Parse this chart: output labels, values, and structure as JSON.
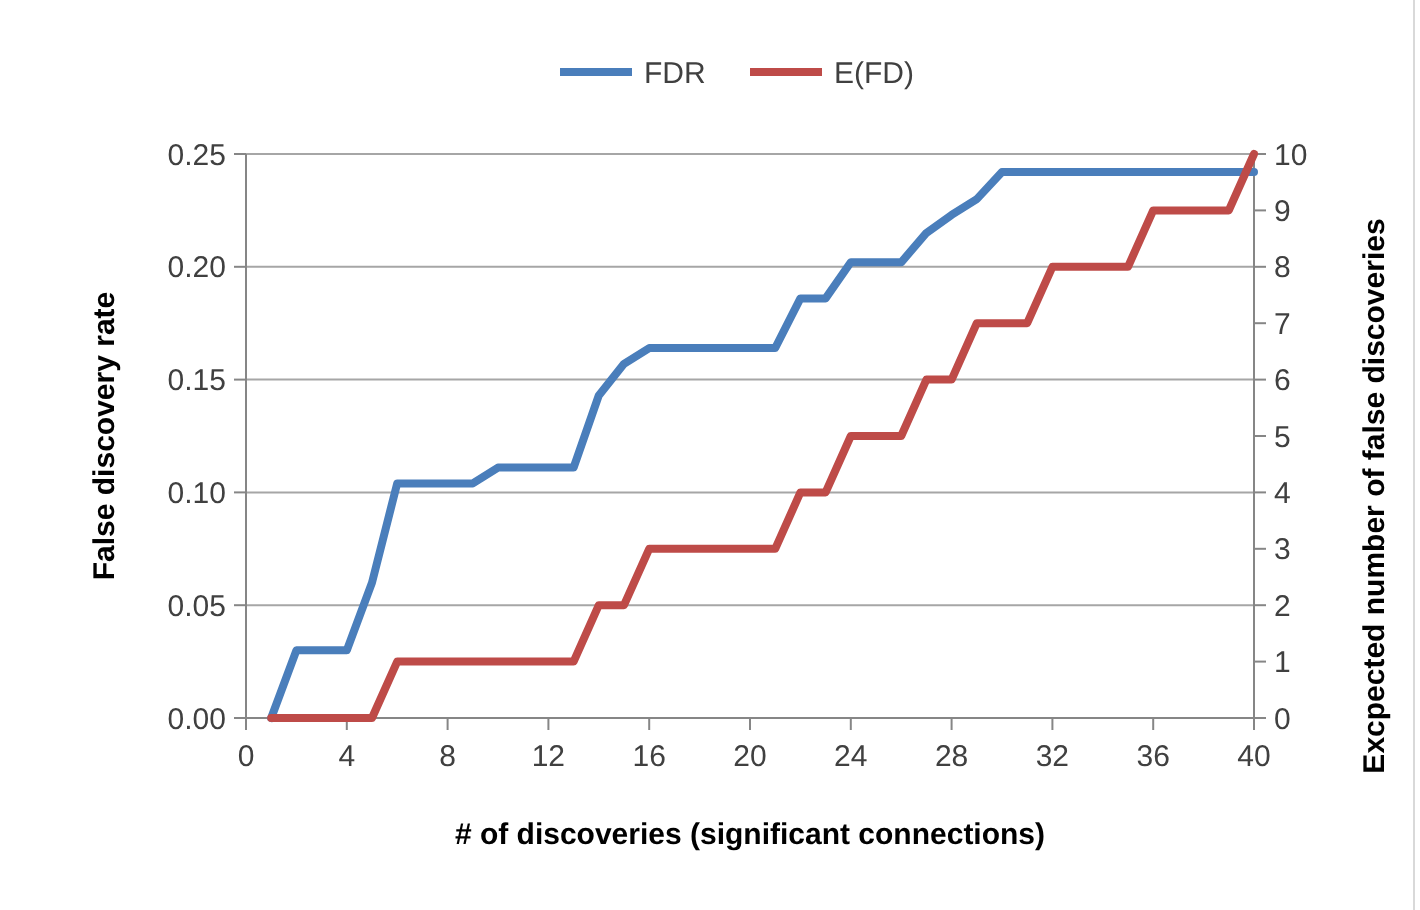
{
  "chart_data": {
    "type": "line",
    "xlabel": "# of discoveries (significant connections)",
    "ylabel": "False discovery rate",
    "y2label": "Excpected number of false discoveries",
    "x": [
      1,
      2,
      3,
      4,
      5,
      6,
      7,
      8,
      9,
      10,
      11,
      12,
      13,
      14,
      15,
      16,
      17,
      18,
      19,
      20,
      21,
      22,
      23,
      24,
      25,
      26,
      27,
      28,
      29,
      30,
      31,
      32,
      33,
      34,
      35,
      36,
      37,
      38,
      39,
      40
    ],
    "series": [
      {
        "name": "FDR",
        "color": "#4a7ebb",
        "values": [
          0,
          0.03,
          0.03,
          0.03,
          0.06,
          0.104,
          0.104,
          0.104,
          0.104,
          0.111,
          0.111,
          0.111,
          0.111,
          0.143,
          0.157,
          0.164,
          0.164,
          0.164,
          0.164,
          0.164,
          0.164,
          0.186,
          0.186,
          0.202,
          0.202,
          0.202,
          0.215,
          0.223,
          0.23,
          0.242,
          0.242,
          0.242,
          0.242,
          0.242,
          0.242,
          0.242,
          0.242,
          0.242,
          0.242,
          0.242
        ]
      },
      {
        "name": "E(FD)",
        "color": "#be4b48",
        "axis": "y2",
        "values": [
          0,
          0,
          0,
          0,
          0,
          1,
          1,
          1,
          1,
          1,
          1,
          1,
          1,
          2,
          2,
          3,
          3,
          3,
          3,
          3,
          3,
          4,
          4,
          5,
          5,
          5,
          6,
          6,
          7,
          7,
          7,
          8,
          8,
          8,
          8,
          9,
          9,
          9,
          9,
          10
        ]
      }
    ],
    "xlim": [
      0,
      40
    ],
    "xticks": [
      0,
      4,
      8,
      12,
      16,
      20,
      24,
      28,
      32,
      36,
      40
    ],
    "ylim": [
      0,
      0.25
    ],
    "yticks": [
      {
        "value": 0,
        "label": "0.00"
      },
      {
        "value": 0.05,
        "label": "0.05"
      },
      {
        "value": 0.1,
        "label": "0.10"
      },
      {
        "value": 0.15,
        "label": "0.15"
      },
      {
        "value": 0.2,
        "label": "0.20"
      },
      {
        "value": 0.25,
        "label": "0.25"
      }
    ],
    "y2lim": [
      0,
      10
    ],
    "y2ticks": [
      0,
      1,
      2,
      3,
      4,
      5,
      6,
      7,
      8,
      9,
      10
    ],
    "grid": "y",
    "legend": "top",
    "marker": "none",
    "line_style": "solid"
  }
}
